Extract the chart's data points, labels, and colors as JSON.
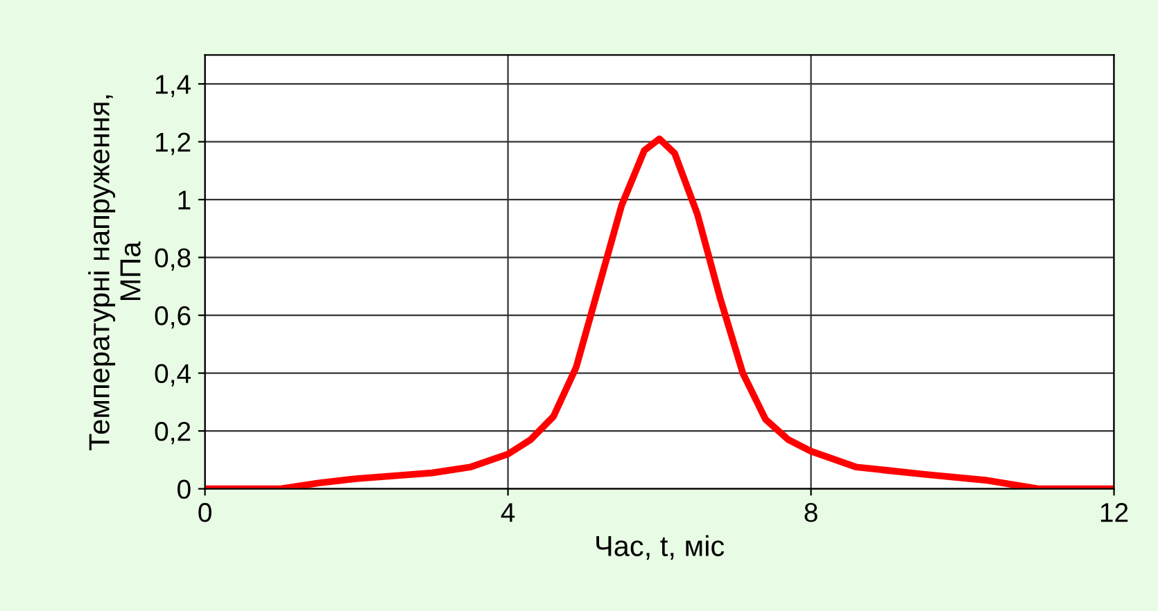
{
  "chart_data": {
    "type": "line",
    "xlabel": "Час, t, міс",
    "ylabel": "Температурні напруження,\nМПа",
    "x": [
      0,
      1,
      1.5,
      2,
      3,
      3.5,
      4,
      4.3,
      4.6,
      4.9,
      5.2,
      5.5,
      5.8,
      6,
      6.2,
      6.5,
      6.8,
      7.1,
      7.4,
      7.7,
      8,
      8.6,
      9.5,
      10.3,
      11,
      12
    ],
    "series": [
      {
        "color": "#ff0000",
        "values": [
          0,
          0,
          0.02,
          0.035,
          0.055,
          0.075,
          0.12,
          0.17,
          0.25,
          0.42,
          0.7,
          0.98,
          1.17,
          1.21,
          1.16,
          0.95,
          0.66,
          0.4,
          0.24,
          0.17,
          0.13,
          0.075,
          0.05,
          0.03,
          0,
          0
        ]
      }
    ],
    "xlim": [
      0,
      12
    ],
    "xticks": [
      0,
      4,
      8,
      12
    ],
    "ylim": [
      0,
      1.5
    ],
    "yticks": [
      0,
      {
        "value": 0.2,
        "label": "0,2"
      },
      {
        "value": 0.4,
        "label": "0,4"
      },
      {
        "value": 0.6,
        "label": "0,6"
      },
      {
        "value": 0.8,
        "label": "0,8"
      },
      1,
      {
        "value": 1.2,
        "label": "1,2"
      },
      {
        "value": 1.4,
        "label": "1,4"
      }
    ],
    "grid": true,
    "marker": "none",
    "line_style": "solid"
  }
}
